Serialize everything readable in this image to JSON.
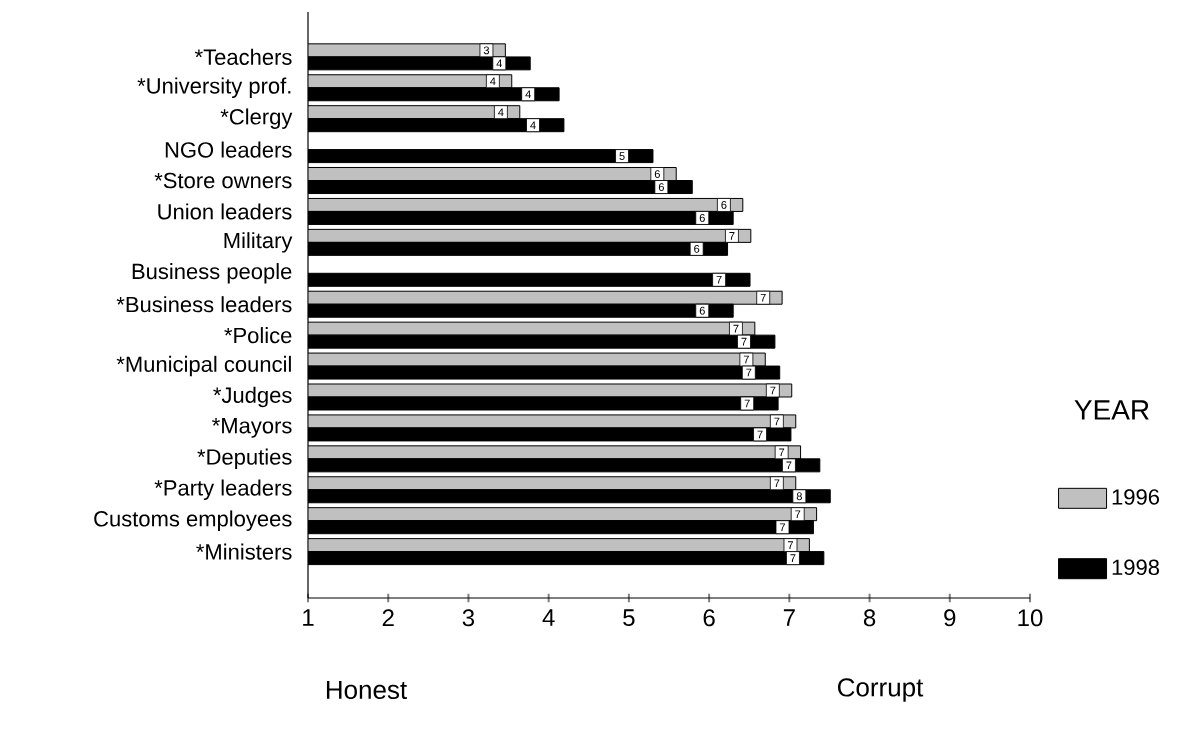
{
  "chart_data": {
    "type": "bar",
    "orientation": "horizontal",
    "categories": [
      "*Teachers",
      "*University prof.",
      "*Clergy",
      "NGO leaders",
      "*Store owners",
      "Union leaders",
      "Military",
      "Business people",
      "*Business leaders",
      "*Police",
      "*Municipal council",
      "*Judges",
      "*Mayors",
      "*Deputies",
      "*Party leaders",
      "Customs employees",
      "*Ministers"
    ],
    "series": [
      {
        "name": "1996",
        "color": "#c0c0c0",
        "values": [
          3.46,
          3.54,
          3.64,
          null,
          5.59,
          6.42,
          6.52,
          null,
          6.91,
          6.57,
          6.7,
          7.03,
          7.08,
          7.14,
          7.08,
          7.34,
          7.25
        ],
        "value_labels": [
          "3",
          "4",
          "4",
          null,
          "6",
          "6",
          "7",
          null,
          "7",
          "7",
          "7",
          "7",
          "7",
          "7",
          "7",
          "7",
          "7"
        ]
      },
      {
        "name": "1998",
        "color": "#000000",
        "values": [
          3.77,
          4.13,
          4.19,
          5.3,
          5.79,
          6.3,
          6.23,
          6.51,
          6.3,
          6.82,
          6.88,
          6.86,
          7.02,
          7.38,
          7.51,
          7.3,
          7.43
        ],
        "value_labels": [
          "4",
          "4",
          "4",
          "5",
          "6",
          "6",
          "6",
          "7",
          "6",
          "7",
          "7",
          "7",
          "7",
          "7",
          "8",
          "7",
          "7"
        ]
      }
    ],
    "xlim": [
      1,
      10
    ],
    "xticks": [
      1,
      2,
      3,
      4,
      5,
      6,
      7,
      8,
      9,
      10
    ],
    "legend": "right",
    "legend_title": "YEAR",
    "grid": false,
    "annotations": [
      "Honest",
      "Corrupt"
    ]
  }
}
